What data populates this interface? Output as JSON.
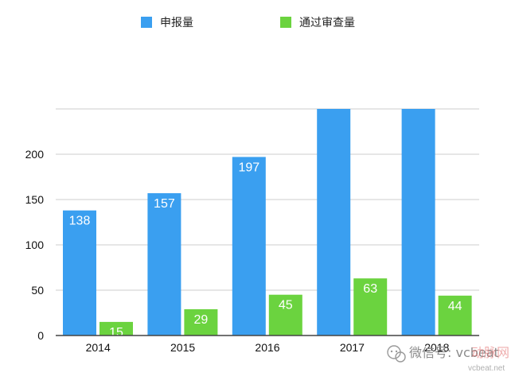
{
  "chart_data": {
    "type": "bar",
    "title": "",
    "xlabel": "",
    "ylabel": "",
    "categories": [
      "2014",
      "2015",
      "2016",
      "2017",
      "2018"
    ],
    "series": [
      {
        "name": "申报量",
        "color": "#3a9ff0",
        "values": [
          138,
          157,
          197,
          250,
          250
        ],
        "labels": [
          "138",
          "157",
          "197",
          "",
          ""
        ]
      },
      {
        "name": "通过审查量",
        "color": "#6bd33f",
        "values": [
          15,
          29,
          45,
          63,
          44
        ],
        "labels": [
          "15",
          "29",
          "45",
          "63",
          "44"
        ]
      }
    ],
    "ylim": [
      0,
      250
    ],
    "yticks": [
      0,
      50,
      100,
      150,
      200
    ],
    "ytick_labels": [
      "0",
      "50",
      "100",
      "150",
      "200"
    ],
    "grid": true,
    "legend_position": "top-center",
    "axis_color": "#444444",
    "grid_color": "#cccccc"
  },
  "watermark": {
    "text": "微信号: vcbeat",
    "brand": "动脉网",
    "url": "vcbeat.net",
    "icon": "wechat-icon"
  }
}
